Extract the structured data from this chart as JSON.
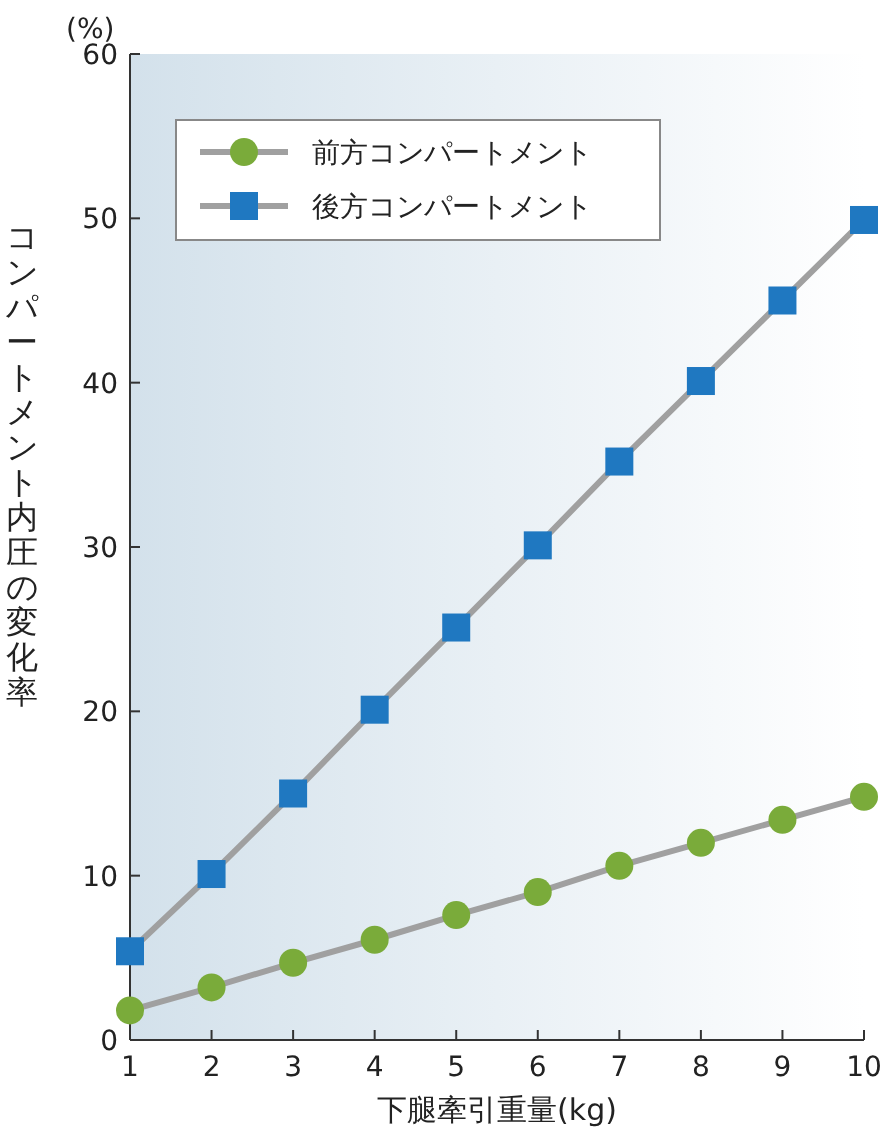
{
  "chart_data": {
    "type": "line",
    "xlabel": "下腿牽引重量(kg)",
    "ylabel": "コンパートメント内圧の変化率",
    "annotations": [
      "(%)"
    ],
    "x": [
      1,
      2,
      3,
      4,
      5,
      6,
      7,
      8,
      9,
      10
    ],
    "series": [
      {
        "name": "前方コンパートメント",
        "color": "#7aab3a",
        "marker": "circle",
        "values": [
          1.8,
          3.2,
          4.7,
          6.1,
          7.6,
          9.0,
          10.6,
          12.0,
          13.4,
          14.8
        ]
      },
      {
        "name": "後方コンパートメント",
        "color": "#1f78c1",
        "marker": "square",
        "values": [
          5.4,
          10.1,
          15.0,
          20.1,
          25.1,
          30.1,
          35.2,
          40.1,
          45.0,
          49.9
        ]
      }
    ],
    "xlim": [
      1,
      10
    ],
    "xticks": [
      1,
      2,
      3,
      4,
      5,
      6,
      7,
      8,
      9,
      10
    ],
    "ylim": [
      0,
      60
    ],
    "yticks": [
      0,
      10,
      20,
      30,
      40,
      50,
      60
    ],
    "grid": false,
    "legend": "top left",
    "line_style": "solid"
  }
}
